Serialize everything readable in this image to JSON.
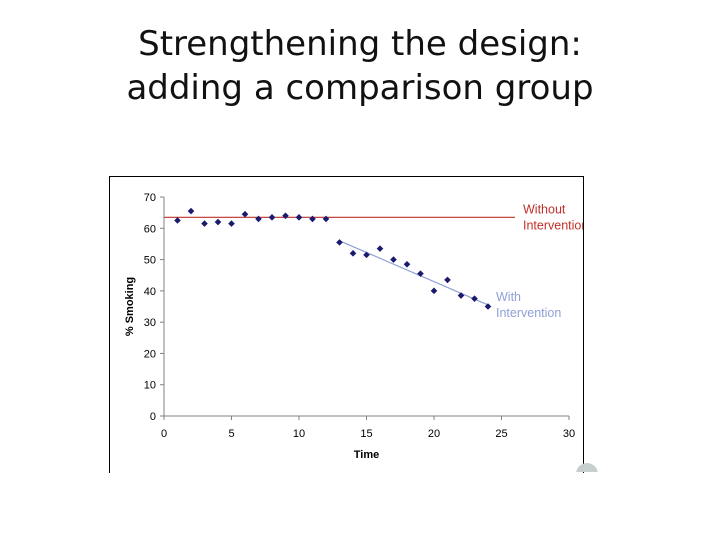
{
  "slide": {
    "title_line1": "Strengthening the design:",
    "title_line2": "adding a comparison group"
  },
  "chart_data": {
    "type": "scatter",
    "xlabel": "Time",
    "ylabel": "% Smoking",
    "xlim": [
      0,
      30
    ],
    "ylim": [
      0,
      70
    ],
    "xticks": [
      0,
      5,
      10,
      15,
      20,
      25,
      30
    ],
    "yticks": [
      0,
      10,
      20,
      30,
      40,
      50,
      60,
      70
    ],
    "grid": false,
    "points": {
      "x": [
        1,
        2,
        3,
        4,
        5,
        6,
        7,
        8,
        9,
        10,
        11,
        12,
        13,
        14,
        15,
        16,
        17,
        18,
        19,
        20,
        21,
        22,
        23,
        24
      ],
      "y": [
        62.5,
        65.5,
        61.5,
        62,
        61.5,
        64.5,
        63,
        63.5,
        64,
        63.5,
        63,
        63,
        55.5,
        52,
        51.5,
        53.5,
        50,
        48.5,
        45.5,
        40,
        43.5,
        38.5,
        37.5,
        35
      ],
      "color": "#1a1a6e"
    },
    "lines": [
      {
        "name": "Without Intervention",
        "x": [
          0,
          26
        ],
        "y": [
          63.5,
          63.5
        ],
        "color": "#c0302a",
        "label_lines": [
          "Without",
          "Intervention"
        ]
      },
      {
        "name": "With Intervention",
        "x": [
          13,
          24
        ],
        "y": [
          56,
          35.5
        ],
        "color": "#8f9fd6",
        "label_lines": [
          "With",
          "Intervention"
        ]
      }
    ]
  }
}
